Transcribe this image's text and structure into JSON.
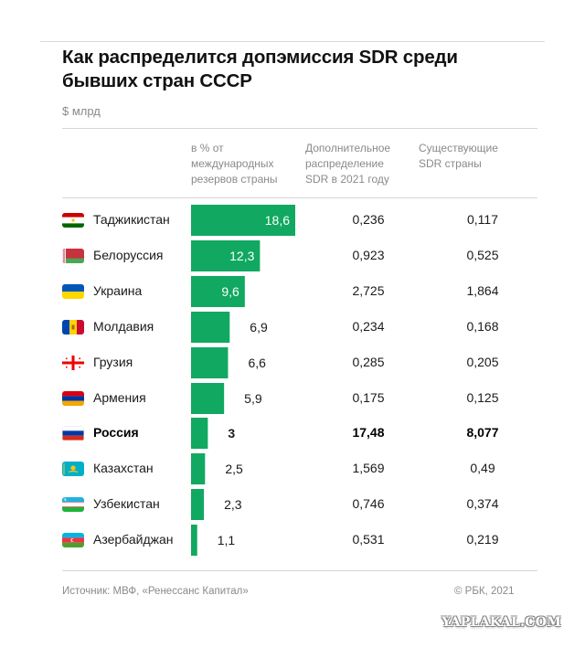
{
  "title": "Как распределится допэмиссия SDR среди бывших стран СССР",
  "unit": "$ млрд",
  "columns": {
    "pct": "в % от международных резервов страны",
    "additional": "Дополнительное распределение SDR в 2021 году",
    "existing": "Существующие SDR страны"
  },
  "colors": {
    "bar": "#11a861",
    "bar_text_inside": "#ffffff"
  },
  "chart_data": {
    "type": "bar",
    "orientation": "horizontal",
    "title": "Как распределится допэмиссия SDR среди бывших стран СССР",
    "unit": "$ млрд",
    "xlim": [
      0,
      18.6
    ],
    "categories": [
      "Таджикистан",
      "Белоруссия",
      "Украина",
      "Молдавия",
      "Грузия",
      "Армения",
      "Россия",
      "Казахстан",
      "Узбекистан",
      "Азербайджан"
    ],
    "values_labels": [
      "18,6",
      "12,3",
      "9,6",
      "6,9",
      "6,6",
      "5,9",
      "3",
      "2,5",
      "2,3",
      "1,1"
    ],
    "series": [
      {
        "name": "в % от международных резервов страны",
        "values": [
          18.6,
          12.3,
          9.6,
          6.9,
          6.6,
          5.9,
          3,
          2.5,
          2.3,
          1.1
        ]
      }
    ],
    "table": {
      "additional": [
        "0,236",
        "0,923",
        "2,725",
        "0,234",
        "0,285",
        "0,175",
        "17,48",
        "1,569",
        "0,746",
        "0,531"
      ],
      "existing": [
        "0,117",
        "0,525",
        "1,864",
        "0,168",
        "0,205",
        "0,125",
        "8,077",
        "0,49",
        "0,374",
        "0,219"
      ]
    },
    "highlight": "Россия",
    "flags": [
      "flag-tajikistan-icon",
      "flag-belarus-icon",
      "flag-ukraine-icon",
      "flag-moldova-icon",
      "flag-georgia-icon",
      "flag-armenia-icon",
      "flag-russia-icon",
      "flag-kazakhstan-icon",
      "flag-uzbekistan-icon",
      "flag-azerbaijan-icon"
    ]
  },
  "footer": {
    "source": "Источник: МВФ, «Ренессанс Капитал»",
    "copyright": "© РБК, 2021"
  },
  "watermark": "YAPLAKAL.COM"
}
